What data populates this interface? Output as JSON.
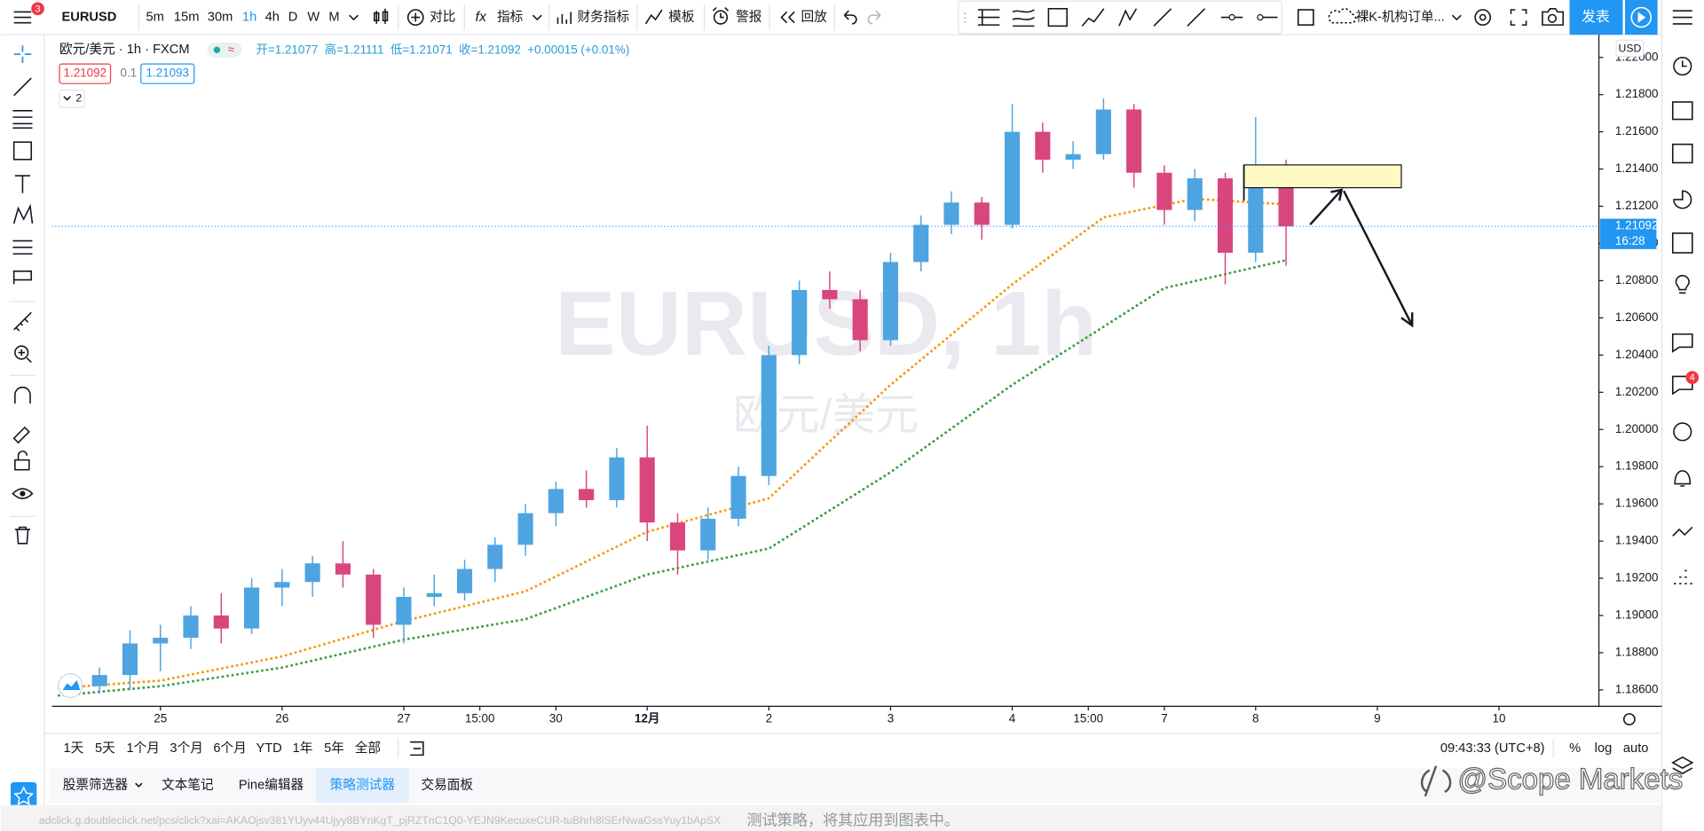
{
  "toolbar": {
    "menu_badge": "3",
    "symbol": "EURUSD",
    "intervals": [
      "5m",
      "15m",
      "30m",
      "1h",
      "4h",
      "D",
      "W",
      "M"
    ],
    "compare": "对比",
    "indicators": "指标",
    "financials": "财务指标",
    "templates": "模板",
    "alert": "警报",
    "replay": "回放",
    "layout": "裸K-机构订单...",
    "publish": "发表"
  },
  "legend": {
    "title": "欧元/美元 · 1h · FXCM",
    "open": "开=1.21077",
    "high": "高=1.21111",
    "low": "低=1.21071",
    "close": "收=1.21092",
    "change": "+0.00015 (+0.01%)",
    "bid": "1.21092",
    "spread": "0.1",
    "ask": "1.21093",
    "collapse": "2"
  },
  "watermark": {
    "symbol": "EURUSD, 1h",
    "name": "欧元/美元"
  },
  "chart_data": {
    "type": "candlestick",
    "currency": "USD",
    "up_color": "#4ea4e0",
    "down_color": "#d9467e",
    "xlim": [
      -21.4,
      283.7
    ],
    "xticks": [
      {
        "value": 0,
        "label": "25"
      },
      {
        "value": 24,
        "label": "26"
      },
      {
        "value": 48,
        "label": "27"
      },
      {
        "value": 63,
        "label": "15:00"
      },
      {
        "value": 78,
        "label": "30"
      },
      {
        "value": 96,
        "label": "12月"
      },
      {
        "value": 120,
        "label": "2"
      },
      {
        "value": 144,
        "label": "3"
      },
      {
        "value": 168,
        "label": "4"
      },
      {
        "value": 183,
        "label": "15:00"
      },
      {
        "value": 198,
        "label": "7"
      },
      {
        "value": 216,
        "label": "8"
      },
      {
        "value": 240,
        "label": "9"
      },
      {
        "value": 264,
        "label": "10"
      }
    ],
    "ylim": [
      1.18518,
      1.22122
    ],
    "yticks": [
      {
        "value": 1.186,
        "label": "1.18600"
      },
      {
        "value": 1.188,
        "label": "1.18800"
      },
      {
        "value": 1.19,
        "label": "1.19000"
      },
      {
        "value": 1.192,
        "label": "1.19200"
      },
      {
        "value": 1.194,
        "label": "1.19400"
      },
      {
        "value": 1.196,
        "label": "1.19600"
      },
      {
        "value": 1.198,
        "label": "1.19800"
      },
      {
        "value": 1.2,
        "label": "1.20000"
      },
      {
        "value": 1.202,
        "label": "1.20200"
      },
      {
        "value": 1.204,
        "label": "1.20400"
      },
      {
        "value": 1.206,
        "label": "1.20600"
      },
      {
        "value": 1.208,
        "label": "1.20800"
      },
      {
        "value": 1.21,
        "label": "1.21000"
      },
      {
        "value": 1.212,
        "label": "1.21200"
      },
      {
        "value": 1.214,
        "label": "1.21400"
      },
      {
        "value": 1.216,
        "label": "1.21600"
      },
      {
        "value": 1.218,
        "label": "1.21800"
      },
      {
        "value": 1.22,
        "label": "1.22000"
      }
    ],
    "candles": {
      "x": [
        -12,
        -6,
        0,
        6,
        12,
        18,
        24,
        30,
        36,
        42,
        48,
        54,
        60,
        66,
        72,
        78,
        84,
        90,
        96,
        102,
        108,
        114,
        120,
        126,
        132,
        138,
        144,
        150,
        156,
        162,
        168,
        174,
        180,
        186,
        192,
        198,
        204,
        210,
        216,
        222
      ],
      "open": [
        1.1862,
        1.1868,
        1.1885,
        1.1888,
        1.19,
        1.1893,
        1.1915,
        1.1918,
        1.1928,
        1.1922,
        1.1895,
        1.191,
        1.1912,
        1.1925,
        1.1938,
        1.1955,
        1.1968,
        1.1962,
        1.1985,
        1.195,
        1.1935,
        1.1952,
        1.1975,
        1.204,
        1.2075,
        1.207,
        1.2048,
        1.209,
        1.211,
        1.2122,
        1.211,
        1.216,
        1.2145,
        1.2148,
        1.2172,
        1.2138,
        1.2118,
        1.2135,
        1.2095,
        1.214
      ],
      "high": [
        1.1872,
        1.1892,
        1.1895,
        1.1905,
        1.1912,
        1.192,
        1.1925,
        1.1932,
        1.194,
        1.1925,
        1.1915,
        1.1922,
        1.193,
        1.1942,
        1.196,
        1.1972,
        1.1978,
        1.199,
        1.2002,
        1.1955,
        1.1958,
        1.198,
        1.2045,
        1.208,
        1.2085,
        1.2075,
        1.2095,
        1.2115,
        1.2128,
        1.2125,
        1.2175,
        1.2165,
        1.2155,
        1.2178,
        1.2175,
        1.2142,
        1.214,
        1.2138,
        1.2168,
        1.2145
      ],
      "low": [
        1.1858,
        1.186,
        1.187,
        1.1882,
        1.1885,
        1.189,
        1.1905,
        1.191,
        1.1915,
        1.1888,
        1.1885,
        1.1905,
        1.1908,
        1.1918,
        1.1932,
        1.1948,
        1.1958,
        1.1958,
        1.194,
        1.1922,
        1.193,
        1.1948,
        1.197,
        1.2035,
        1.2065,
        1.2042,
        1.2045,
        1.2085,
        1.2105,
        1.2102,
        1.2108,
        1.2138,
        1.214,
        1.2145,
        1.213,
        1.211,
        1.2112,
        1.2078,
        1.209,
        1.2088
      ],
      "close": [
        1.1868,
        1.1885,
        1.1888,
        1.19,
        1.1893,
        1.1915,
        1.1918,
        1.1928,
        1.1922,
        1.1895,
        1.191,
        1.1912,
        1.1925,
        1.1938,
        1.1955,
        1.1968,
        1.1962,
        1.1985,
        1.195,
        1.1935,
        1.1952,
        1.1975,
        1.204,
        1.2075,
        1.207,
        1.2048,
        1.209,
        1.211,
        1.2122,
        1.211,
        1.216,
        1.2145,
        1.2148,
        1.2172,
        1.2138,
        1.2118,
        1.2135,
        1.2095,
        1.214,
        1.21092
      ]
    },
    "lines": [
      {
        "color": "#f39c12",
        "x": [
          -20,
          0,
          24,
          48,
          72,
          96,
          120,
          144,
          168,
          186,
          204,
          222
        ],
        "values": [
          1.1861,
          1.1865,
          1.1878,
          1.1897,
          1.1913,
          1.1945,
          1.1963,
          1.2024,
          1.2078,
          1.2114,
          1.2124,
          1.2121
        ]
      },
      {
        "color": "#3fa04a",
        "x": [
          -20,
          0,
          24,
          48,
          72,
          96,
          120,
          144,
          168,
          198,
          222
        ],
        "values": [
          1.1857,
          1.1862,
          1.1872,
          1.1887,
          1.1898,
          1.1922,
          1.1936,
          1.1977,
          1.2024,
          1.2076,
          1.2091
        ]
      }
    ],
    "last_price": {
      "value": 1.21092,
      "label": "1.21092"
    },
    "countdown": "16:28"
  },
  "bottom_bar": {
    "ranges": [
      "1天",
      "5天",
      "1个月",
      "3个月",
      "6个月",
      "YTD",
      "1年",
      "5年",
      "全部"
    ],
    "clock": "09:43:33 (UTC+8)",
    "percent": "%",
    "log": "log",
    "auto": "auto"
  },
  "tabs": [
    "股票筛选器",
    "文本笔记",
    "Pine编辑器",
    "策略测试器",
    "交易面板"
  ],
  "status": {
    "url": "adclick.g.doubleclick.net/pcs/click?xai=AKAOjsv381YUyv44Ujyy8BYnKgT_pjRZTnC1Q0-YEJN9KecuxeCUR-tuBhrh8lSErNwaGssYuy1bApSX",
    "message": "测试策略，将其应用到图表中。"
  },
  "overlay": "@Scope Markets"
}
